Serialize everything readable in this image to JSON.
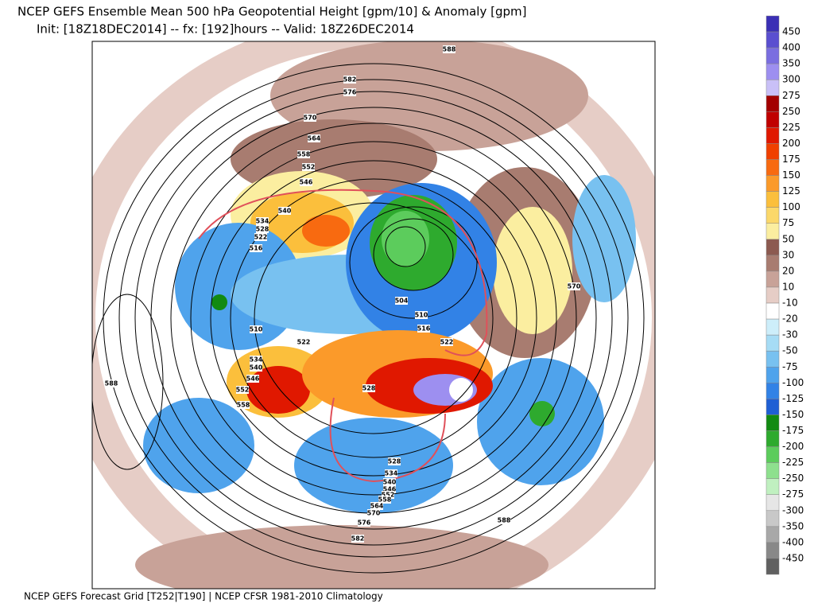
{
  "header": {
    "title": "NCEP GEFS Ensemble Mean 500 hPa Geopotential Height [gpm/10] & Anomaly [gpm]",
    "subtitle": "Init: [18Z18DEC2014] -- fx: [192]hours -- Valid: 18Z26DEC2014"
  },
  "footer": "NCEP GEFS Forecast Grid [T252|T190] | NCEP CFSR 1981-2010 Climatology",
  "colorbar": {
    "labels": [
      450,
      400,
      350,
      300,
      275,
      250,
      225,
      200,
      175,
      150,
      125,
      100,
      75,
      50,
      30,
      20,
      10,
      -10,
      -20,
      -30,
      -50,
      -75,
      -100,
      -125,
      -150,
      -175,
      -200,
      -225,
      -250,
      -275,
      -300,
      -350,
      -400,
      -450
    ],
    "colors": [
      "#3a2fb5",
      "#5a4fd0",
      "#7a6ee0",
      "#9d8ff0",
      "#c9c0f7",
      "#a30000",
      "#c00000",
      "#e01800",
      "#f04000",
      "#f86a10",
      "#fb9a2a",
      "#fbbf3c",
      "#fbd86a",
      "#fbeea0",
      "#8c5a50",
      "#a87c70",
      "#c8a298",
      "#e6cdc6",
      "#ffffff",
      "#cdeefa",
      "#a6dcf5",
      "#78c1f0",
      "#4fa3ec",
      "#3282e6",
      "#1f5fd4",
      "#128a12",
      "#2eaa2e",
      "#5ccc5c",
      "#8ee08e",
      "#c0f0c0",
      "#e6e6e6",
      "#c8c8c8",
      "#a8a8a8",
      "#888888",
      "#606060"
    ]
  },
  "contour_labels": [
    588,
    582,
    576,
    570,
    564,
    558,
    552,
    546,
    540,
    534,
    528,
    522,
    516,
    510,
    504,
    510,
    516,
    522,
    522,
    534,
    540,
    546,
    552,
    558,
    528,
    528,
    534,
    540,
    546,
    552,
    558,
    564,
    570,
    576,
    582,
    588,
    588,
    570
  ]
}
